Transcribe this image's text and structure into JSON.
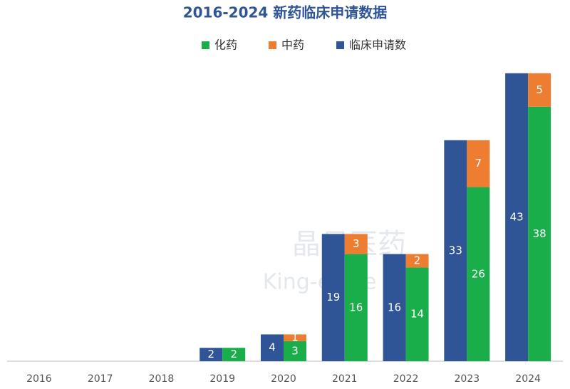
{
  "chart_data": {
    "type": "bar",
    "title": "2016-2024 新药临床申请数据",
    "watermark": [
      "晶易医药",
      "King-eagle Med"
    ],
    "categories": [
      "2016",
      "2017",
      "2018",
      "2019",
      "2020",
      "2021",
      "2022",
      "2023",
      "2024"
    ],
    "series": [
      {
        "name": "化药",
        "color": "#1aae4a",
        "values": [
          0,
          0,
          0,
          2,
          3,
          16,
          14,
          26,
          38
        ]
      },
      {
        "name": "中药",
        "color": "#ed7d31",
        "values": [
          0,
          0,
          0,
          0,
          1,
          3,
          2,
          7,
          5
        ]
      },
      {
        "name": "临床申请数",
        "color": "#2f5597",
        "values": [
          0,
          0,
          0,
          2,
          4,
          19,
          16,
          33,
          43
        ]
      }
    ],
    "ylim": [
      0,
      45
    ]
  }
}
